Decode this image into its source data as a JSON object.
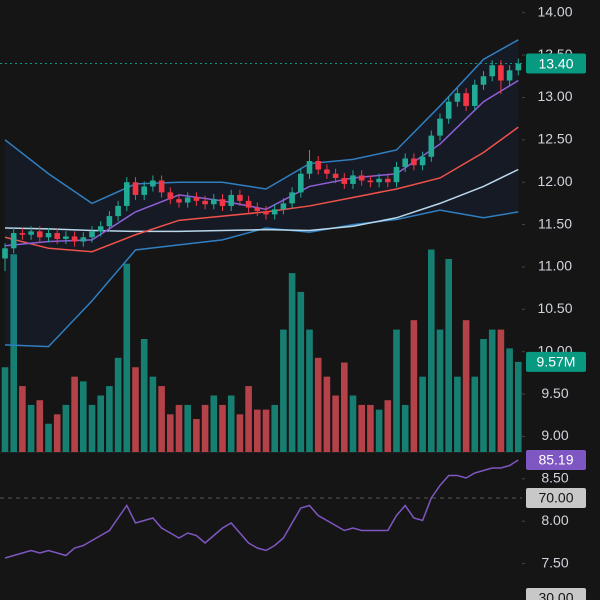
{
  "chart_data": {
    "type": "candlestick",
    "ylim": [
      7.07,
      14.15
    ],
    "yticks": [
      {
        "value": 14,
        "label": "14.00"
      },
      {
        "value": 13.5,
        "label": "13.50"
      },
      {
        "value": 13,
        "label": "13.00"
      },
      {
        "value": 12.5,
        "label": "12.50"
      },
      {
        "value": 12,
        "label": "12.00"
      },
      {
        "value": 11.5,
        "label": "11.50"
      },
      {
        "value": 11,
        "label": "11.00"
      },
      {
        "value": 10.5,
        "label": "10.50"
      },
      {
        "value": 10,
        "label": "10.00"
      },
      {
        "value": 9.5,
        "label": "9.50"
      },
      {
        "value": 9,
        "label": "9.00"
      },
      {
        "value": 8.5,
        "label": "8.50"
      },
      {
        "value": 8,
        "label": "8.00"
      },
      {
        "value": 7.5,
        "label": "7.50"
      }
    ],
    "vlim": [
      0,
      48
    ],
    "rsi_ylim": [
      29.2,
      88.4
    ],
    "up_color": "#22ab94",
    "down_color": "#f23645",
    "vol_up_color": "#167f72",
    "vol_down_color": "#b54249",
    "open": [
      11.1,
      11.22,
      11.4,
      11.38,
      11.42,
      11.35,
      11.4,
      11.33,
      11.36,
      11.3,
      11.35,
      11.42,
      11.48,
      11.6,
      11.72,
      12.0,
      11.85,
      11.95,
      12.02,
      11.88,
      11.8,
      11.76,
      11.82,
      11.78,
      11.74,
      11.8,
      11.72,
      11.85,
      11.78,
      11.7,
      11.66,
      11.62,
      11.68,
      11.75,
      11.88,
      12.1,
      12.25,
      12.15,
      12.1,
      12.05,
      11.98,
      12.08,
      12.02,
      12.0,
      12.04,
      12.0,
      12.18,
      12.28,
      12.2,
      12.3,
      12.55,
      12.75,
      12.95,
      13.05,
      12.9,
      13.15,
      13.25,
      13.38,
      13.2,
      13.32
    ],
    "high": [
      11.28,
      11.46,
      11.46,
      11.48,
      11.48,
      11.46,
      11.46,
      11.42,
      11.42,
      11.41,
      11.48,
      11.54,
      11.66,
      11.78,
      12.06,
      12.06,
      12.01,
      12.08,
      12.08,
      11.94,
      11.86,
      11.88,
      11.88,
      11.84,
      11.86,
      11.86,
      11.91,
      11.91,
      11.84,
      11.76,
      11.72,
      11.74,
      11.81,
      11.94,
      12.16,
      12.38,
      12.31,
      12.21,
      12.16,
      12.11,
      12.14,
      12.14,
      12.08,
      12.1,
      12.1,
      12.24,
      12.34,
      12.34,
      12.36,
      12.61,
      12.81,
      13.01,
      13.11,
      13.11,
      13.21,
      13.31,
      13.44,
      13.44,
      13.38,
      13.46
    ],
    "low": [
      10.95,
      11.16,
      11.32,
      11.32,
      11.29,
      11.29,
      11.27,
      11.27,
      11.24,
      11.24,
      11.29,
      11.36,
      11.42,
      11.54,
      11.66,
      11.79,
      11.79,
      11.89,
      11.82,
      11.74,
      11.7,
      11.7,
      11.72,
      11.68,
      11.68,
      11.66,
      11.66,
      11.72,
      11.64,
      11.6,
      11.56,
      11.56,
      11.62,
      11.69,
      11.82,
      12.04,
      12.09,
      12.04,
      11.99,
      11.92,
      11.92,
      11.96,
      11.94,
      11.94,
      11.94,
      11.94,
      12.12,
      12.14,
      12.14,
      12.24,
      12.49,
      12.69,
      12.89,
      12.84,
      12.84,
      13.09,
      13.19,
      13.04,
      13.14,
      13.26
    ],
    "close": [
      11.22,
      11.4,
      11.38,
      11.42,
      11.35,
      11.4,
      11.33,
      11.36,
      11.3,
      11.35,
      11.42,
      11.48,
      11.6,
      11.72,
      12.0,
      11.85,
      11.95,
      12.02,
      11.88,
      11.8,
      11.76,
      11.82,
      11.78,
      11.74,
      11.8,
      11.72,
      11.85,
      11.78,
      11.7,
      11.66,
      11.62,
      11.68,
      11.75,
      11.88,
      12.1,
      12.25,
      12.15,
      12.1,
      12.05,
      11.98,
      12.08,
      12.02,
      12.0,
      12.04,
      12.0,
      12.18,
      12.28,
      12.2,
      12.3,
      12.55,
      12.75,
      12.95,
      13.05,
      12.9,
      13.15,
      13.25,
      13.38,
      13.2,
      13.32,
      13.4
    ],
    "volume": [
      9,
      21,
      7,
      5,
      5.5,
      3,
      4,
      5,
      8,
      7.5,
      5,
      6,
      7,
      10,
      20,
      9,
      12,
      8,
      7,
      4,
      5,
      5,
      3.5,
      5,
      6,
      5,
      6,
      4,
      7,
      4.5,
      4.5,
      5,
      13,
      19,
      17,
      13,
      10,
      8,
      6,
      9.5,
      6,
      5,
      5,
      4.5,
      5.5,
      13,
      5,
      14,
      8,
      21.5,
      13,
      20.5,
      8,
      14,
      8,
      12,
      13,
      13,
      11,
      9.57
    ],
    "line_index": [
      0,
      5,
      10,
      15,
      20,
      25,
      30,
      35,
      40,
      45,
      50,
      55,
      59
    ],
    "lines": [
      {
        "color": "#2f7fc1",
        "values": [
          12.5,
          12.1,
          11.75,
          11.98,
          12.0,
          12.0,
          11.92,
          12.22,
          12.27,
          12.38,
          12.9,
          13.45,
          13.68
        ]
      },
      {
        "color": "#2f7fc1",
        "values": [
          10.08,
          10.06,
          10.6,
          11.2,
          11.26,
          11.32,
          11.46,
          11.41,
          11.5,
          11.56,
          11.67,
          11.58,
          11.65
        ]
      },
      {
        "color": "#b8d8ea",
        "values": [
          11.46,
          11.45,
          11.43,
          11.42,
          11.42,
          11.43,
          11.44,
          11.43,
          11.48,
          11.58,
          11.75,
          11.95,
          12.15
        ]
      },
      {
        "color": "#f0524a",
        "values": [
          11.35,
          11.22,
          11.18,
          11.38,
          11.55,
          11.6,
          11.65,
          11.72,
          11.82,
          11.92,
          12.05,
          12.35,
          12.65
        ]
      },
      {
        "color": "#8e5fd6",
        "values": [
          11.25,
          11.3,
          11.32,
          11.65,
          11.85,
          11.78,
          11.68,
          11.95,
          12.05,
          12.1,
          12.45,
          12.95,
          13.2
        ]
      }
    ],
    "rsi": {
      "color": "#7e57c2",
      "values": [
        46,
        47,
        48,
        49,
        48,
        49,
        48,
        47,
        50,
        51,
        53,
        55,
        57,
        62,
        67,
        60,
        61,
        62,
        58,
        56,
        54,
        56,
        55,
        52,
        55,
        58,
        60,
        56,
        52,
        50,
        49,
        51,
        54,
        60,
        66,
        67,
        63,
        61,
        59,
        57,
        58,
        57,
        57,
        57,
        57,
        63,
        67,
        62,
        61,
        70,
        75,
        79,
        79,
        78,
        80,
        81,
        82,
        82,
        83,
        85.19
      ]
    },
    "price_badge": {
      "value": 13.4,
      "label": "13.40",
      "color": "#089981"
    },
    "volume_badge": {
      "value": 9.57,
      "label": "9.57M",
      "color": "#089981"
    },
    "rsi_badge": {
      "value": 85.19,
      "label": "85.19",
      "color": "#7e57c2"
    },
    "rsi_upper": {
      "value": 70,
      "label": "70.00",
      "color": "#c8c8c8"
    },
    "rsi_lower": {
      "value": 30,
      "label": "30.00",
      "color": "#c8c8c8"
    }
  }
}
